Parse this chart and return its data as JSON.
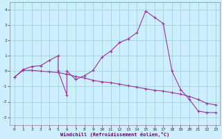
{
  "title": "",
  "xlabel": "Windchill (Refroidissement éolien,°C)",
  "ylabel": "",
  "background_color": "#cceeff",
  "grid_color": "#99cccc",
  "line_color": "#993399",
  "xlim": [
    -0.5,
    23.5
  ],
  "ylim": [
    -3.5,
    4.5
  ],
  "yticks": [
    -3,
    -2,
    -1,
    0,
    1,
    2,
    3,
    4
  ],
  "xticks": [
    0,
    1,
    2,
    3,
    4,
    5,
    6,
    7,
    8,
    9,
    10,
    11,
    12,
    13,
    14,
    15,
    16,
    17,
    18,
    19,
    20,
    21,
    22,
    23
  ],
  "line1_x": [
    0,
    1,
    2,
    3,
    4,
    5,
    5,
    6,
    6,
    7,
    8,
    9,
    10,
    11,
    12,
    13,
    14,
    15,
    16,
    17,
    18,
    19,
    20,
    21,
    22,
    23
  ],
  "line1_y": [
    -0.4,
    0.1,
    0.3,
    0.35,
    0.7,
    1.0,
    0.0,
    -1.55,
    0.0,
    -0.55,
    -0.3,
    0.05,
    0.9,
    1.3,
    1.85,
    2.1,
    2.5,
    3.9,
    3.5,
    3.1,
    0.0,
    -1.2,
    -1.85,
    -2.6,
    -2.7,
    -2.7
  ],
  "line2_x": [
    0,
    1,
    2,
    3,
    4,
    5,
    6,
    7,
    8,
    9,
    10,
    11,
    12,
    13,
    14,
    15,
    16,
    17,
    18,
    19,
    20,
    21,
    22,
    23
  ],
  "line2_y": [
    -0.4,
    0.05,
    0.05,
    0.0,
    -0.05,
    -0.1,
    -0.2,
    -0.35,
    -0.45,
    -0.6,
    -0.7,
    -0.75,
    -0.85,
    -0.95,
    -1.05,
    -1.15,
    -1.25,
    -1.3,
    -1.4,
    -1.5,
    -1.65,
    -1.85,
    -2.1,
    -2.2
  ],
  "figsize": [
    3.2,
    2.0
  ],
  "dpi": 100
}
